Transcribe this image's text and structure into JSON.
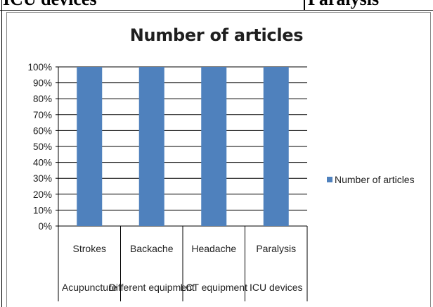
{
  "document_row": {
    "left_cell": "ICU devices",
    "right_cell": "Paralysis"
  },
  "chart_data": {
    "type": "bar",
    "title": "Number of articles",
    "categories": [
      "Strokes",
      "Backache",
      "Headache",
      "Paralysis"
    ],
    "category_groups": [
      "Acupuncture",
      "Different equipment",
      "LCT equipment",
      "ICU devices"
    ],
    "series": [
      {
        "name": "Number of articles",
        "values": [
          100,
          100,
          100,
          100
        ],
        "color": "#4f81bd"
      }
    ],
    "ylim": [
      0,
      100
    ],
    "y_ticks": [
      "0%",
      "10%",
      "20%",
      "30%",
      "40%",
      "50%",
      "60%",
      "70%",
      "80%",
      "90%",
      "100%"
    ],
    "grid": true,
    "legend_position": "right"
  }
}
